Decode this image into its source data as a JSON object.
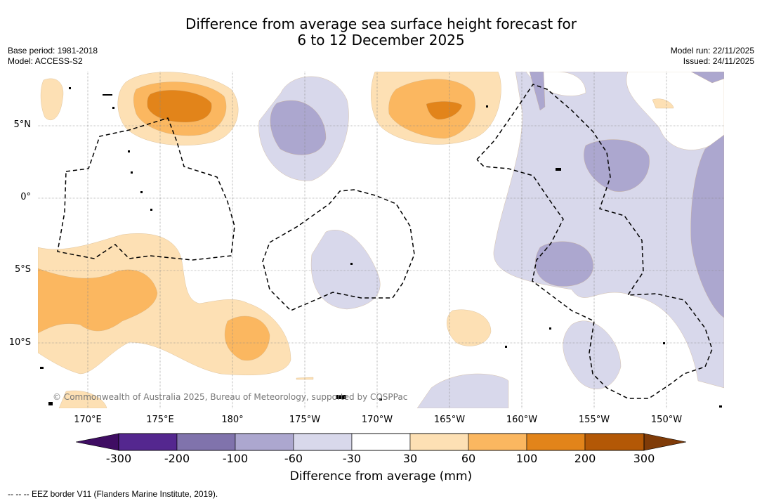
{
  "title": {
    "line1": "Difference from average sea surface height forecast for",
    "line2": "6 to 12 December 2025"
  },
  "meta_left": {
    "base_period": "Base period: 1981-2018",
    "model": "Model: ACCESS-S2"
  },
  "meta_right": {
    "model_run": "Model run: 22/11/2025",
    "issued": "Issued: 24/11/2025"
  },
  "map": {
    "credit": "© Commonwealth of Australia 2025, Bureau of Meteorology, supported by COSPPac",
    "lat_labels": [
      "5°N",
      "0°",
      "5°S",
      "10°S"
    ],
    "lon_labels": [
      "170°E",
      "175°E",
      "180°",
      "175°W",
      "170°W",
      "165°W",
      "160°W",
      "155°W",
      "150°W"
    ],
    "colors": {
      "neg_60_30": "#d8d8eb",
      "neg_100_60": "#aca7cf",
      "neg_300_200": "#54278f",
      "pos_30_60": "#fde0b4",
      "pos_60_100": "#fbb760",
      "pos_100_200": "#e2841a",
      "pos_200_300": "#b35806",
      "border": "#000000",
      "grid": "#888888"
    }
  },
  "colorbar": {
    "ticks": [
      "-300",
      "-200",
      "-100",
      "-60",
      "-30",
      "30",
      "60",
      "100",
      "200",
      "300"
    ],
    "colors": [
      "#3f0d63",
      "#54278f",
      "#8073ac",
      "#aca7cf",
      "#d8d8eb",
      "#ffffff",
      "#fde0b4",
      "#fbb760",
      "#e2841a",
      "#b35806",
      "#7f3b08"
    ],
    "label": "Difference from average (mm)"
  },
  "footer": "--  --  -- EEZ border V11 (Flanders Marine Institute, 2019)."
}
